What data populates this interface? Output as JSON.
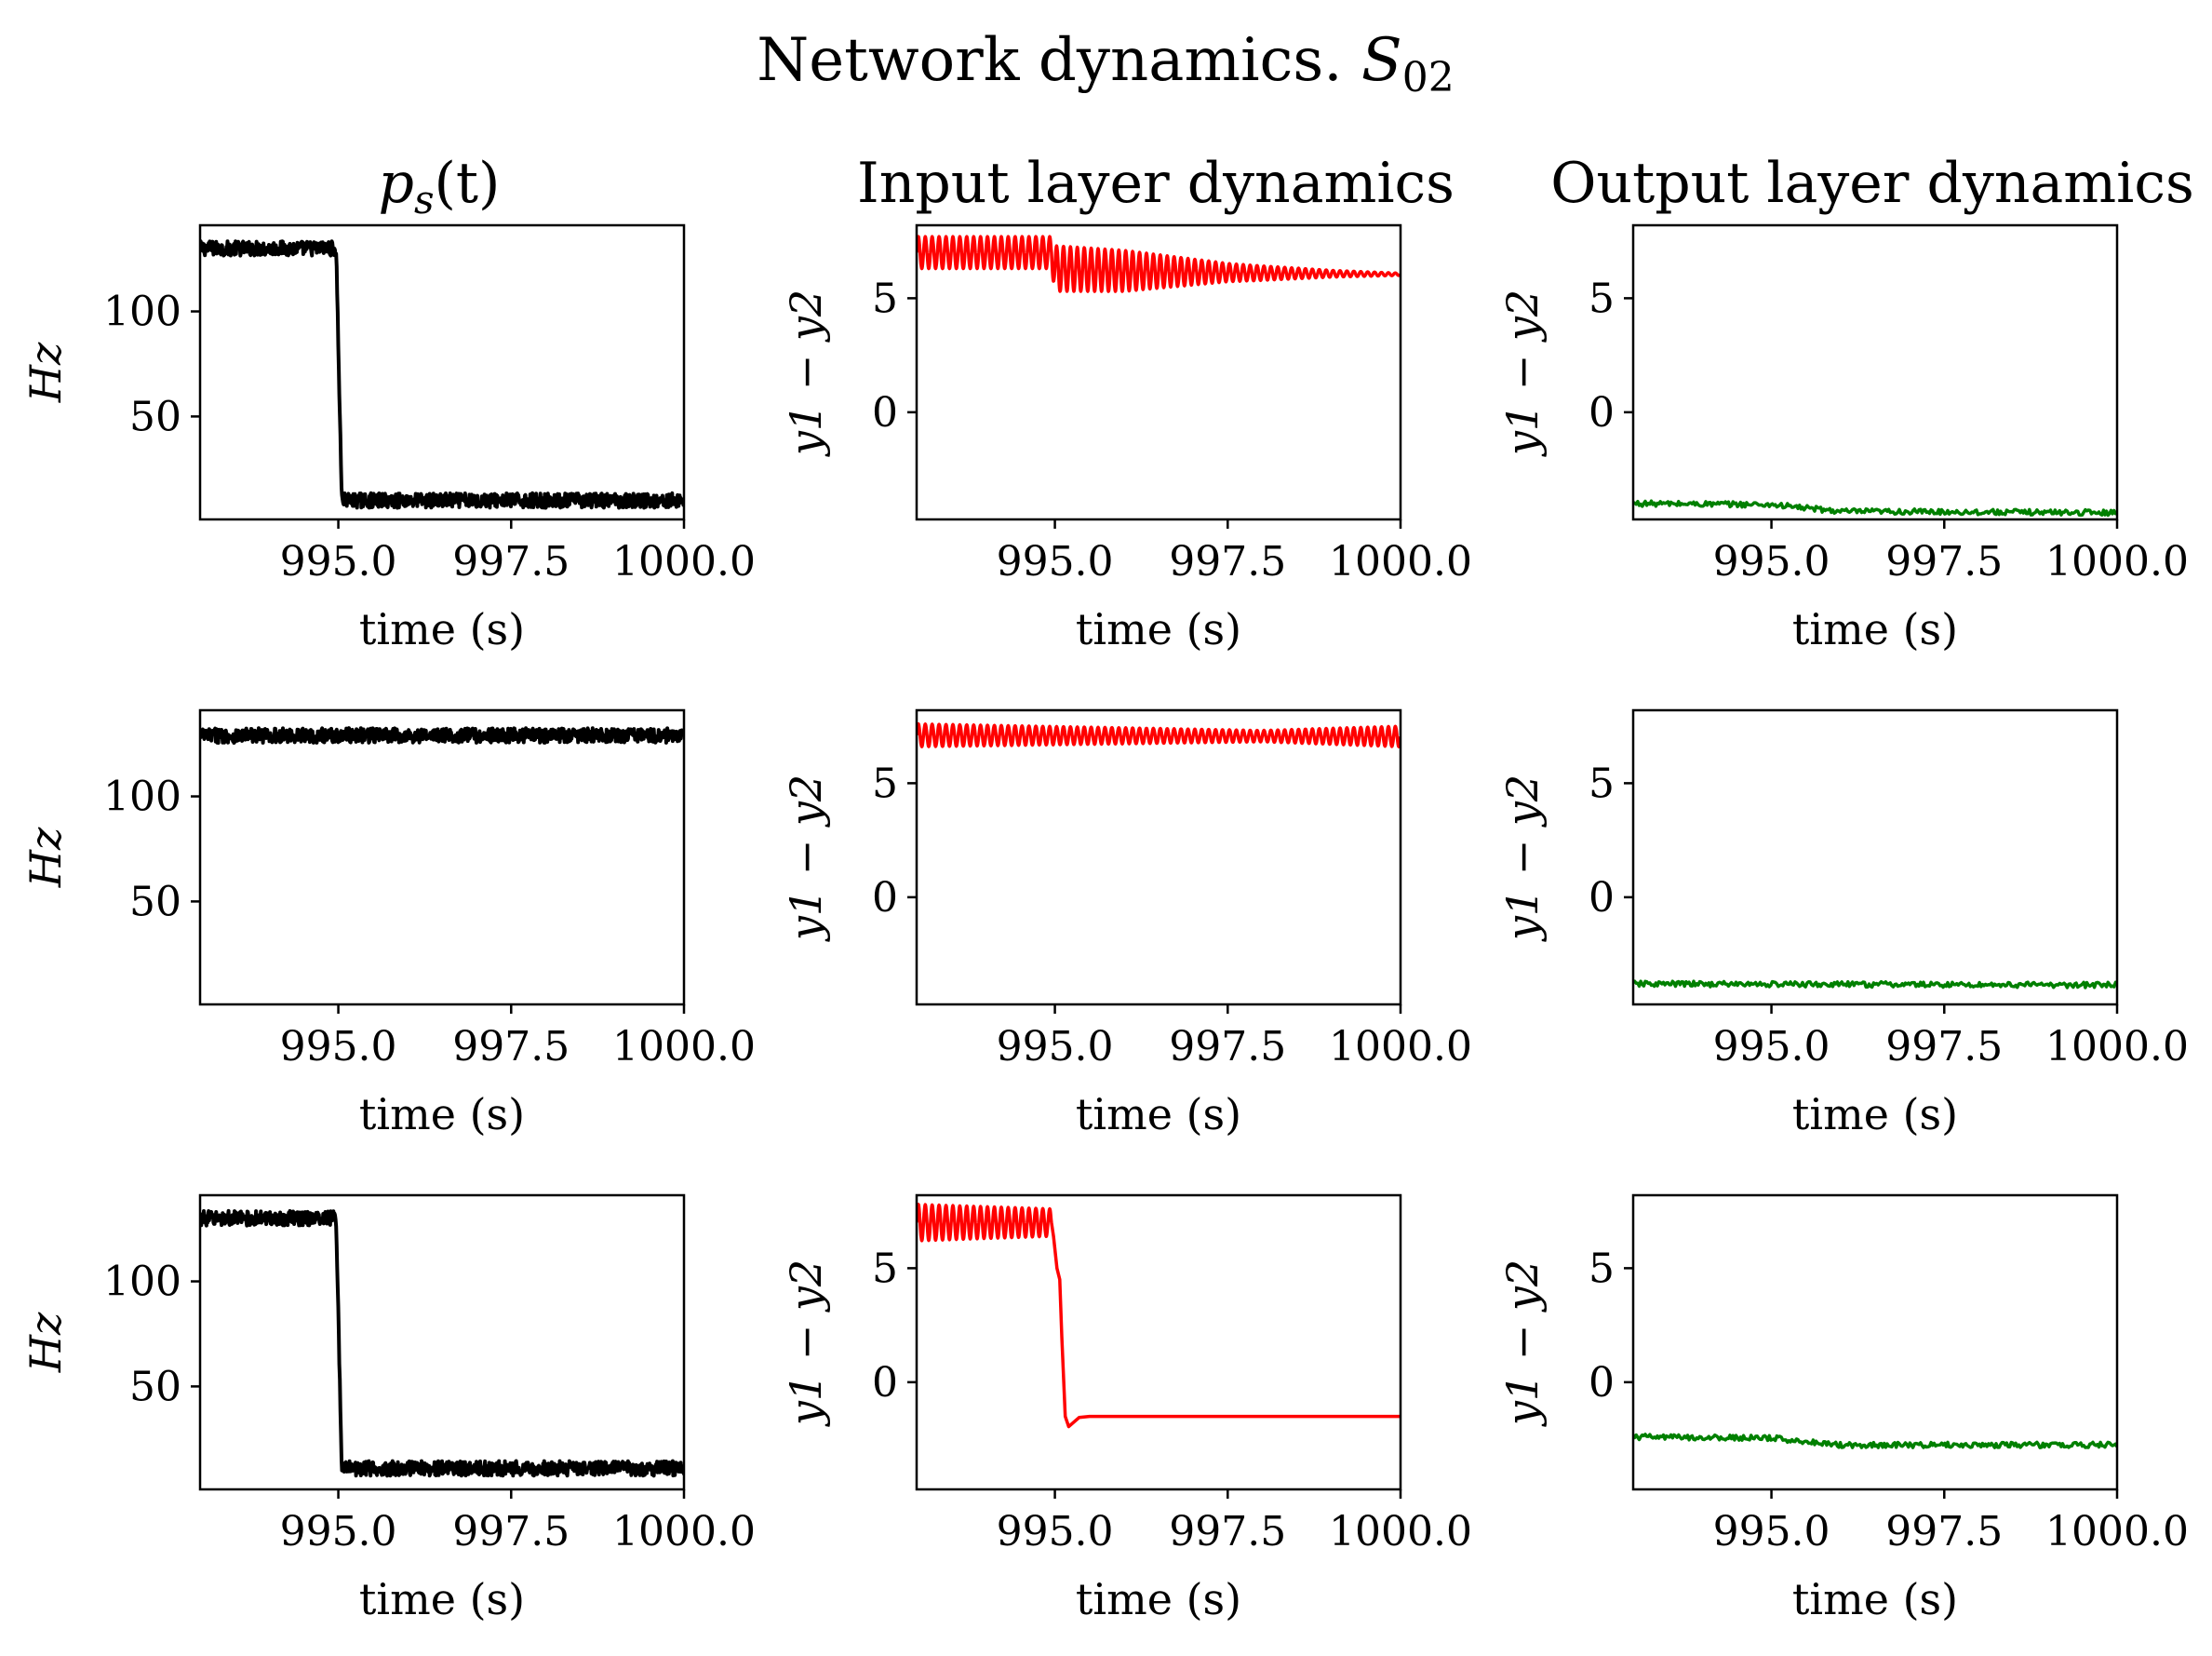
{
  "figure": {
    "title_main": "Network dynamics. ",
    "title_symbol": "S",
    "title_subscript": "02",
    "column_titles": [
      "p",
      "Input layer dynamics",
      "Output layer dynamics"
    ],
    "col0_title_sub": "s",
    "col0_title_arg": "(t)"
  },
  "chart_data": [
    {
      "type": "line",
      "row": 0,
      "col": 0,
      "xlabel": "time (s)",
      "ylabel": "Hz",
      "xlim": [
        993.0,
        1000.0
      ],
      "ylim": [
        1,
        141
      ],
      "xticks": [
        "995.0",
        "997.5",
        "1000.0"
      ],
      "xtick_values": [
        995.0,
        997.5,
        1000.0
      ],
      "yticks": [
        "50",
        "100"
      ],
      "ytick_values": [
        50,
        100
      ],
      "color": "#000000",
      "series": [
        {
          "kind": "noisy",
          "x": [
            993.0,
            994.95,
            994.97,
            995.05,
            1000.0
          ],
          "y": [
            130,
            130,
            128,
            10,
            10
          ],
          "amplitude": 3.5
        }
      ]
    },
    {
      "type": "line",
      "row": 0,
      "col": 1,
      "xlabel": "time (s)",
      "ylabel": "y1 − y2",
      "xlim": [
        993.0,
        1000.0
      ],
      "ylim": [
        -4.7,
        8.2
      ],
      "xticks": [
        "995.0",
        "997.5",
        "1000.0"
      ],
      "xtick_values": [
        995.0,
        997.5,
        1000.0
      ],
      "yticks": [
        "0",
        "5"
      ],
      "ytick_values": [
        0,
        5
      ],
      "color": "#ff0000",
      "series": [
        {
          "kind": "oscillation",
          "center": [
            [
              993.0,
              7.0
            ],
            [
              994.95,
              7.0
            ],
            [
              995.0,
              6.3
            ],
            [
              996.0,
              6.2
            ],
            [
              998.0,
              6.1
            ],
            [
              1000.0,
              6.05
            ]
          ],
          "amplitude": [
            [
              993.0,
              0.7
            ],
            [
              994.95,
              0.7
            ],
            [
              995.0,
              1.0
            ],
            [
              996.0,
              0.9
            ],
            [
              997.5,
              0.4
            ],
            [
              999.0,
              0.15
            ],
            [
              1000.0,
              0.05
            ]
          ],
          "period": 0.1
        }
      ]
    },
    {
      "type": "line",
      "row": 0,
      "col": 2,
      "xlabel": "time (s)",
      "ylabel": "y1 − y2",
      "xlim": [
        993.0,
        1000.0
      ],
      "ylim": [
        -4.7,
        8.2
      ],
      "xticks": [
        "995.0",
        "997.5",
        "1000.0"
      ],
      "xtick_values": [
        995.0,
        997.5,
        1000.0
      ],
      "yticks": [
        "0",
        "5"
      ],
      "ytick_values": [
        0,
        5
      ],
      "color": "#008000",
      "series": [
        {
          "kind": "noisy",
          "x": [
            993.0,
            995.0,
            996.0,
            1000.0
          ],
          "y": [
            -4.0,
            -4.05,
            -4.35,
            -4.4
          ],
          "amplitude": 0.12
        }
      ]
    },
    {
      "type": "line",
      "row": 1,
      "col": 0,
      "xlabel": "time (s)",
      "ylabel": "Hz",
      "xlim": [
        993.0,
        1000.0
      ],
      "ylim": [
        1,
        141
      ],
      "xticks": [
        "995.0",
        "997.5",
        "1000.0"
      ],
      "xtick_values": [
        995.0,
        997.5,
        1000.0
      ],
      "yticks": [
        "50",
        "100"
      ],
      "ytick_values": [
        50,
        100
      ],
      "color": "#000000",
      "series": [
        {
          "kind": "noisy",
          "x": [
            993.0,
            1000.0
          ],
          "y": [
            129,
            129
          ],
          "amplitude": 3.5
        }
      ]
    },
    {
      "type": "line",
      "row": 1,
      "col": 1,
      "xlabel": "time (s)",
      "ylabel": "y1 − y2",
      "xlim": [
        993.0,
        1000.0
      ],
      "ylim": [
        -4.7,
        8.2
      ],
      "xticks": [
        "995.0",
        "997.5",
        "1000.0"
      ],
      "xtick_values": [
        995.0,
        997.5,
        1000.0
      ],
      "yticks": [
        "0",
        "5"
      ],
      "ytick_values": [
        0,
        5
      ],
      "color": "#ff0000",
      "series": [
        {
          "kind": "oscillation",
          "center": [
            [
              993.0,
              7.1
            ],
            [
              1000.0,
              7.05
            ]
          ],
          "amplitude": [
            [
              993.0,
              0.5
            ],
            [
              996.0,
              0.35
            ],
            [
              998.0,
              0.25
            ],
            [
              1000.0,
              0.45
            ]
          ],
          "period": 0.1
        }
      ]
    },
    {
      "type": "line",
      "row": 1,
      "col": 2,
      "xlabel": "time (s)",
      "ylabel": "y1 − y2",
      "xlim": [
        993.0,
        1000.0
      ],
      "ylim": [
        -4.7,
        8.2
      ],
      "xticks": [
        "995.0",
        "997.5",
        "1000.0"
      ],
      "xtick_values": [
        995.0,
        997.5,
        1000.0
      ],
      "yticks": [
        "0",
        "5"
      ],
      "ytick_values": [
        0,
        5
      ],
      "color": "#008000",
      "series": [
        {
          "kind": "noisy",
          "x": [
            993.0,
            1000.0
          ],
          "y": [
            -3.8,
            -3.85
          ],
          "amplitude": 0.12
        }
      ]
    },
    {
      "type": "line",
      "row": 2,
      "col": 0,
      "xlabel": "time (s)",
      "ylabel": "Hz",
      "xlim": [
        993.0,
        1000.0
      ],
      "ylim": [
        1,
        141
      ],
      "xticks": [
        "995.0",
        "997.5",
        "1000.0"
      ],
      "xtick_values": [
        995.0,
        997.5,
        1000.0
      ],
      "yticks": [
        "50",
        "100"
      ],
      "ytick_values": [
        50,
        100
      ],
      "color": "#000000",
      "series": [
        {
          "kind": "noisy",
          "x": [
            993.0,
            994.95,
            994.97,
            995.05,
            1000.0
          ],
          "y": [
            130,
            130,
            128,
            11,
            11
          ],
          "amplitude": 3.5
        }
      ]
    },
    {
      "type": "line",
      "row": 2,
      "col": 1,
      "xlabel": "time (s)",
      "ylabel": "y1 − y2",
      "xlim": [
        993.0,
        1000.0
      ],
      "ylim": [
        -4.7,
        8.2
      ],
      "xticks": [
        "995.0",
        "997.5",
        "1000.0"
      ],
      "xtick_values": [
        995.0,
        997.5,
        1000.0
      ],
      "yticks": [
        "0",
        "5"
      ],
      "ytick_values": [
        0,
        5
      ],
      "color": "#ff0000",
      "series": [
        {
          "kind": "oscillation",
          "center": [
            [
              993.0,
              7.0
            ],
            [
              994.95,
              7.0
            ]
          ],
          "amplitude": [
            [
              993.0,
              0.8
            ],
            [
              994.95,
              0.6
            ]
          ],
          "period": 0.1
        },
        {
          "kind": "line",
          "x": [
            994.95,
            994.98,
            995.03,
            995.07,
            995.1,
            995.15,
            995.2,
            995.35,
            995.5,
            1000.0
          ],
          "y": [
            7.0,
            6.4,
            5.0,
            4.5,
            2.0,
            -1.5,
            -1.95,
            -1.55,
            -1.5,
            -1.5
          ]
        }
      ]
    },
    {
      "type": "line",
      "row": 2,
      "col": 2,
      "xlabel": "time (s)",
      "ylabel": "y1 − y2",
      "xlim": [
        993.0,
        1000.0
      ],
      "ylim": [
        -4.7,
        8.2
      ],
      "xticks": [
        "995.0",
        "997.5",
        "1000.0"
      ],
      "xtick_values": [
        995.0,
        997.5,
        1000.0
      ],
      "yticks": [
        "0",
        "5"
      ],
      "ytick_values": [
        0,
        5
      ],
      "color": "#008000",
      "series": [
        {
          "kind": "noisy",
          "x": [
            993.0,
            995.0,
            996.0,
            1000.0
          ],
          "y": [
            -2.4,
            -2.45,
            -2.75,
            -2.75
          ],
          "amplitude": 0.12
        }
      ]
    }
  ]
}
